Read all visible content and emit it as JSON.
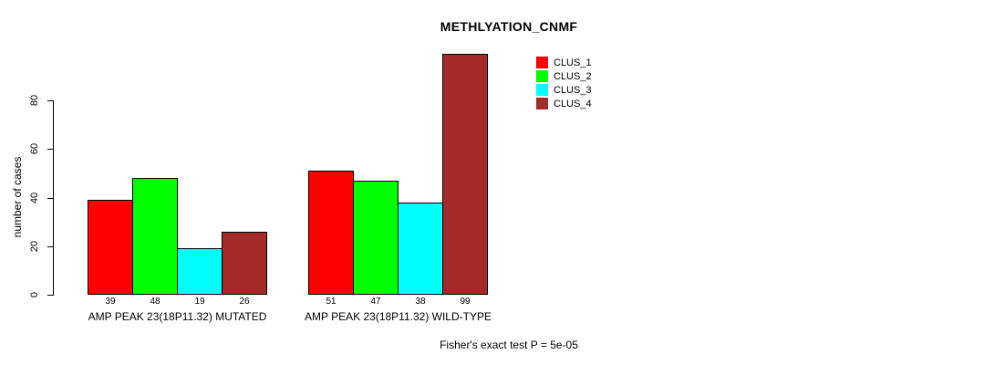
{
  "chart_data": {
    "type": "bar",
    "title": "METHLYATION_CNMF",
    "xlabel": "",
    "ylabel": "number of cases",
    "ylim": [
      0,
      80
    ],
    "yticks": [
      0,
      20,
      40,
      60,
      80
    ],
    "grid": false,
    "legend_position": "top-right",
    "series": [
      "CLUS_1",
      "CLUS_2",
      "CLUS_3",
      "CLUS_4"
    ],
    "colors": [
      "#FF0000",
      "#00FF00",
      "#00FFFF",
      "#A52A2A"
    ],
    "groups": [
      {
        "label": "AMP PEAK 23(18P11.32) MUTATED",
        "values": [
          39,
          48,
          19,
          26
        ]
      },
      {
        "label": "AMP PEAK 23(18P11.32) WILD-TYPE",
        "values": [
          51,
          47,
          38,
          99
        ]
      }
    ],
    "bar_value_labels_shown": true,
    "annotation": "Fisher's exact test P = 5e-05"
  }
}
